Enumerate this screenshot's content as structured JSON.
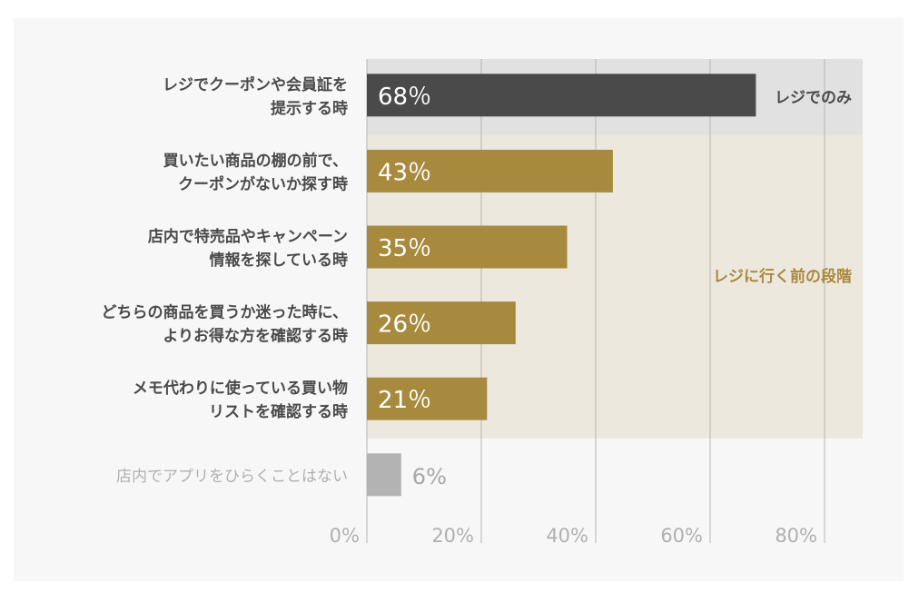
{
  "chart_data": {
    "type": "bar",
    "orientation": "horizontal",
    "categories": [
      [
        "レジでクーポンや会員証を",
        "提示する時"
      ],
      [
        "買いたい商品の棚の前で、",
        "クーポンがないか探す時"
      ],
      [
        "店内で特売品やキャンペーン",
        "情報を探している時"
      ],
      [
        "どちらの商品を買うか迷った時に、",
        "よりお得な方を確認する時"
      ],
      [
        "メモ代わりに使っている買い物",
        "リストを確認する時"
      ],
      [
        "店内でアプリをひらくことはない"
      ]
    ],
    "values": [
      68,
      43,
      35,
      26,
      21,
      6
    ],
    "value_labels": [
      "68％",
      "43％",
      "35％",
      "26％",
      "21％",
      "6%"
    ],
    "bar_colors": [
      "#4a4a4a",
      "#a88a3e",
      "#a88a3e",
      "#a88a3e",
      "#a88a3e",
      "#b3b3b3"
    ],
    "xlim": [
      0,
      87
    ],
    "x_ticks": [
      0,
      20,
      40,
      60,
      80
    ],
    "x_tick_labels": [
      "0%",
      "20%",
      "40%",
      "60%",
      "80%"
    ],
    "grid": true,
    "groups": [
      {
        "label": "レジでのみ",
        "rows": [
          0
        ],
        "background": "#e1e1e1",
        "label_color": "#4a4a4a"
      },
      {
        "label": "レジに行く前の段階",
        "rows": [
          1,
          2,
          3,
          4
        ],
        "background": "#ede8de",
        "label_color": "#a88a3e"
      }
    ]
  }
}
